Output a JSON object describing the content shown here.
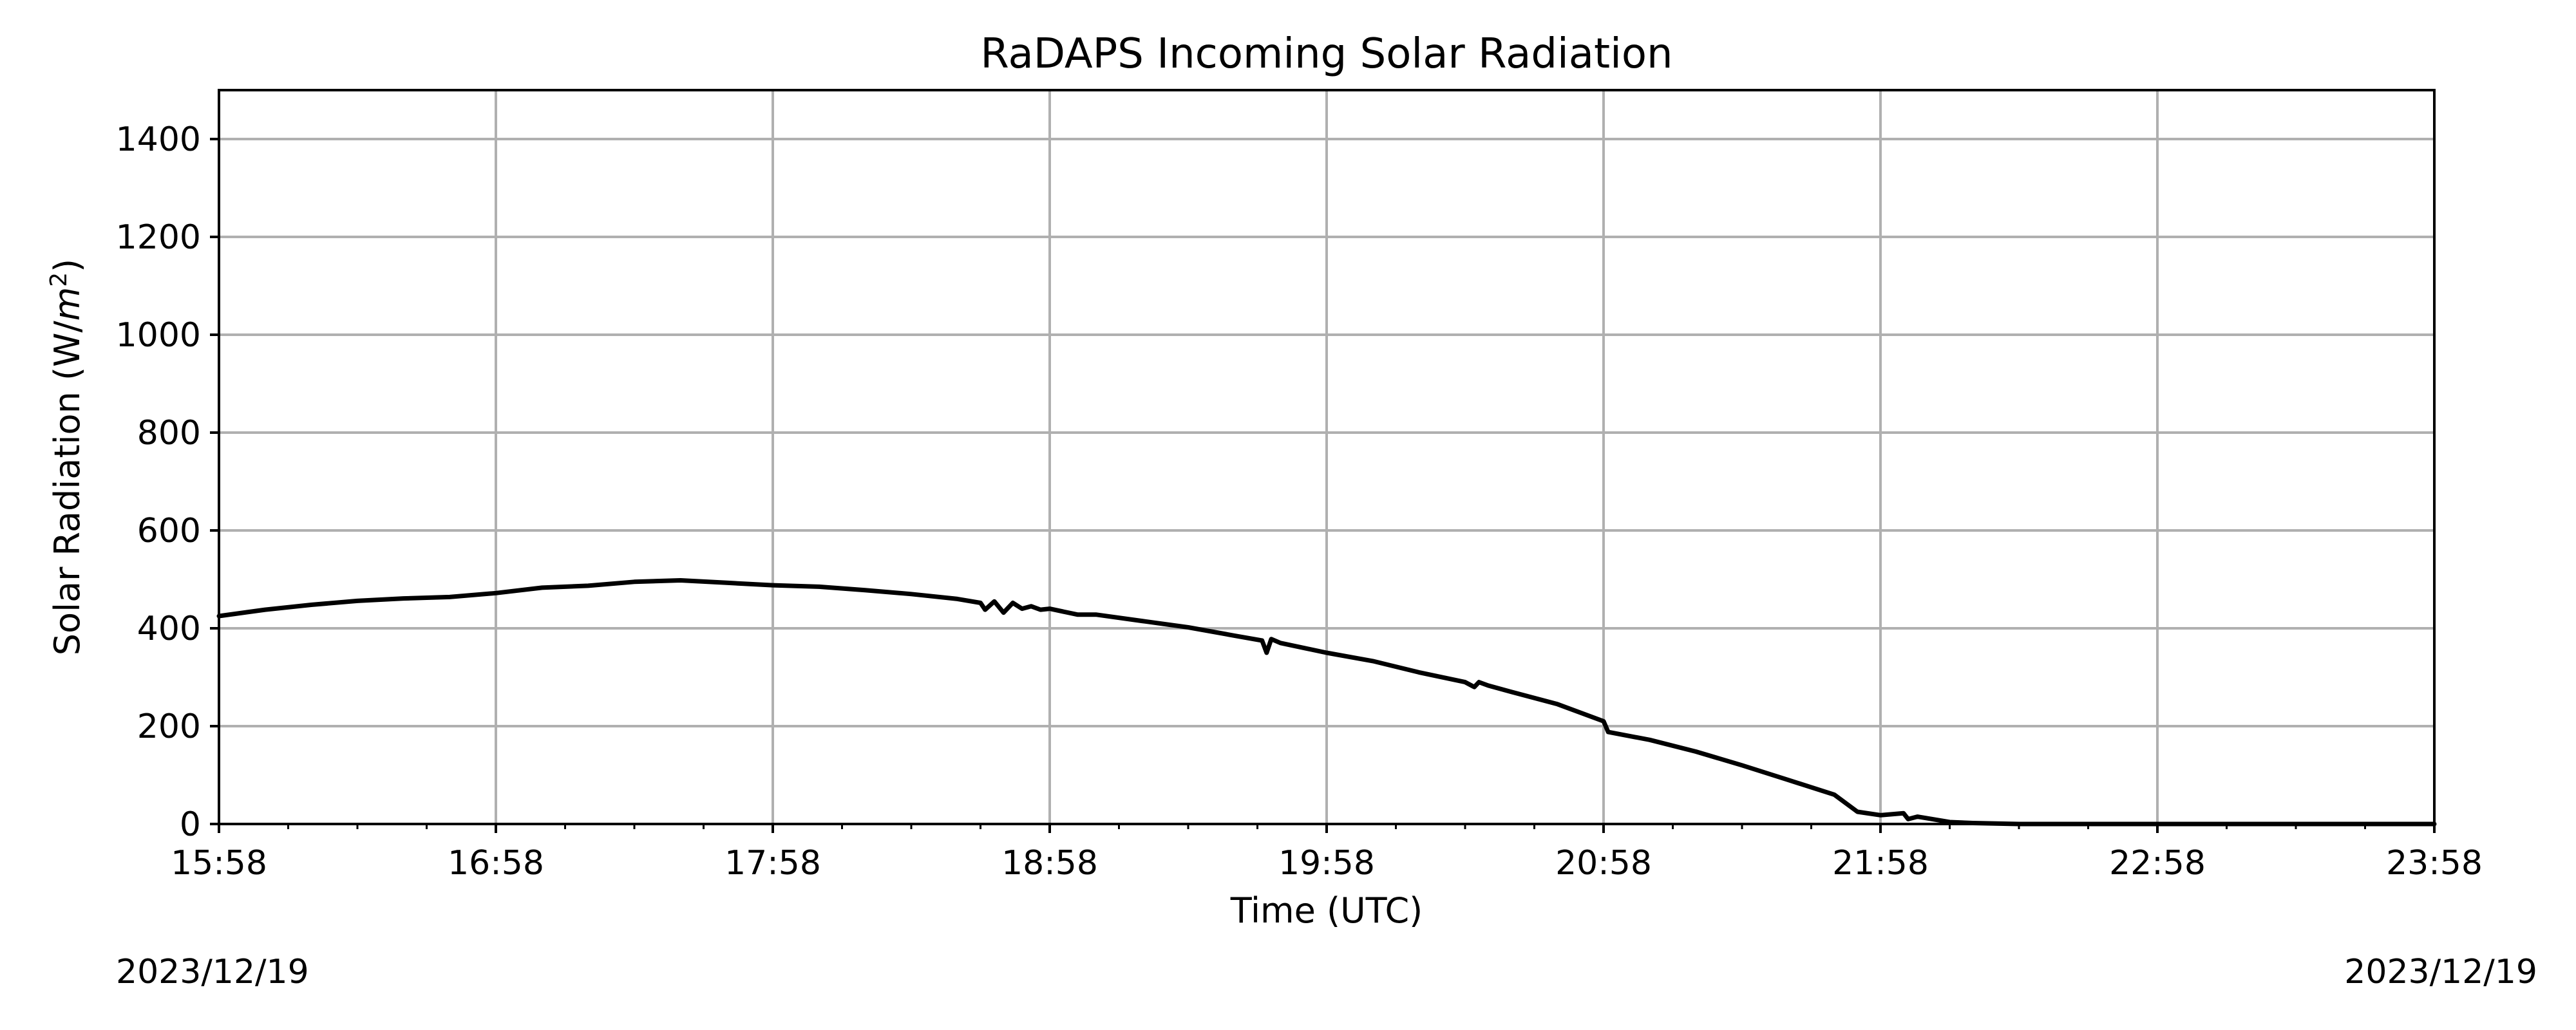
{
  "chart_data": {
    "type": "line",
    "title": "RaDAPS Incoming Solar Radiation",
    "xlabel": "Time (UTC)",
    "ylabel_base": "Solar Radiation (W/",
    "ylabel_var": "m",
    "ylabel_sup": "2",
    "ylabel_close": ")",
    "date_left": "2023/12/19",
    "date_right": "2023/12/19",
    "xlim": [
      "15:58",
      "23:58"
    ],
    "ylim": [
      0,
      1500
    ],
    "x_ticks": [
      "15:58",
      "16:58",
      "17:58",
      "18:58",
      "19:58",
      "20:58",
      "21:58",
      "22:58",
      "23:58"
    ],
    "y_ticks": [
      0,
      200,
      400,
      600,
      800,
      1000,
      1200,
      1400
    ],
    "grid": true,
    "series": [
      {
        "color": "#000000",
        "x": [
          "15:58",
          "16:08",
          "16:18",
          "16:28",
          "16:38",
          "16:48",
          "16:58",
          "17:08",
          "17:18",
          "17:28",
          "17:38",
          "17:48",
          "17:58",
          "18:08",
          "18:18",
          "18:28",
          "18:38",
          "18:43",
          "18:44",
          "18:46",
          "18:48",
          "18:50",
          "18:52",
          "18:54",
          "18:56",
          "18:58",
          "19:04",
          "19:08",
          "19:18",
          "19:28",
          "19:38",
          "19:44",
          "19:45",
          "19:46",
          "19:48",
          "19:53",
          "19:58",
          "20:08",
          "20:18",
          "20:28",
          "20:30",
          "20:31",
          "20:33",
          "20:38",
          "20:48",
          "20:58",
          "20:59",
          "21:08",
          "21:18",
          "21:28",
          "21:38",
          "21:48",
          "21:53",
          "21:58",
          "22:03",
          "22:04",
          "22:06",
          "22:08",
          "22:13",
          "22:18",
          "22:28",
          "22:38",
          "22:58",
          "23:28",
          "23:58"
        ],
        "y": [
          425,
          438,
          448,
          456,
          461,
          464,
          472,
          483,
          487,
          495,
          498,
          493,
          488,
          485,
          478,
          470,
          460,
          452,
          438,
          455,
          432,
          452,
          440,
          445,
          438,
          440,
          428,
          428,
          415,
          402,
          385,
          375,
          350,
          378,
          370,
          360,
          350,
          333,
          310,
          290,
          280,
          290,
          283,
          270,
          245,
          210,
          188,
          172,
          148,
          120,
          90,
          60,
          25,
          18,
          22,
          10,
          15,
          12,
          4,
          2,
          0,
          0,
          0,
          0,
          0
        ]
      }
    ]
  }
}
